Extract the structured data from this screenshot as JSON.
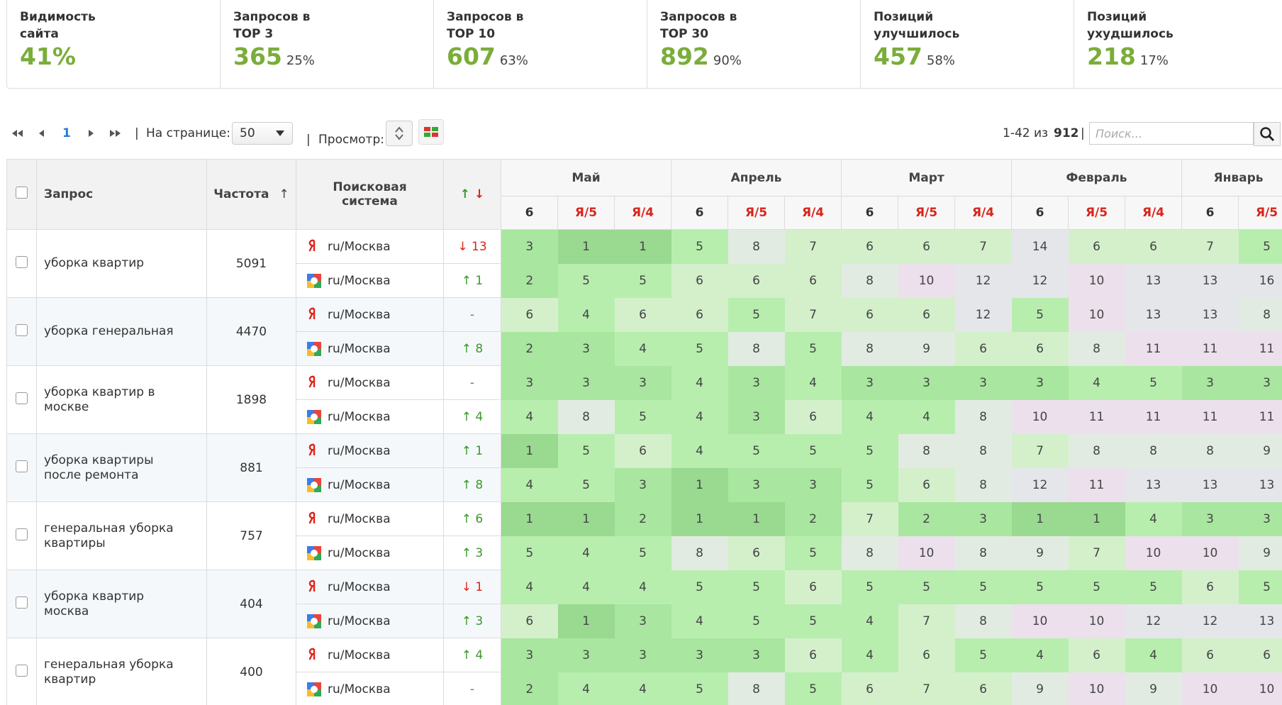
{
  "stats": [
    {
      "label": "Видимость сайта",
      "value": "41%"
    },
    {
      "label": "Запросов в TOP 3",
      "value": "365",
      "percent": "25%"
    },
    {
      "label": "Запросов в TOP 10",
      "value": "607",
      "percent": "63%"
    },
    {
      "label": "Запросов в TOP 30",
      "value": "892",
      "percent": "90%"
    },
    {
      "label": "Позиций улучшилось",
      "value": "457",
      "percent": "58%"
    },
    {
      "label": "Позиций ухудшилось",
      "value": "218",
      "percent": "17%"
    }
  ],
  "toolbar": {
    "page": "1",
    "separator": "|",
    "per_page_label": "На странице:",
    "per_page": "50",
    "view_label": "Просмотр:",
    "range": "1-42 из",
    "total": "912",
    "search_placeholder": "Поиск..."
  },
  "table": {
    "columns": {
      "query": "Запрос",
      "frequency": "Частота",
      "sort_arrow": "↑",
      "engine": "Поисковая система",
      "change_up": "↑",
      "change_down": "↓"
    },
    "months": [
      {
        "name": "Май",
        "subcolumns": [
          {
            "label": "6",
            "color": "#333333"
          },
          {
            "label": "Я/5",
            "color": "#d9251d"
          },
          {
            "label": "Я/4",
            "color": "#d9251d"
          }
        ]
      },
      {
        "name": "Апрель",
        "subcolumns": [
          {
            "label": "6",
            "color": "#333333"
          },
          {
            "label": "Я/5",
            "color": "#d9251d"
          },
          {
            "label": "Я/4",
            "color": "#d9251d"
          }
        ]
      },
      {
        "name": "Март",
        "subcolumns": [
          {
            "label": "6",
            "color": "#333333"
          },
          {
            "label": "Я/5",
            "color": "#d9251d"
          },
          {
            "label": "Я/4",
            "color": "#d9251d"
          }
        ]
      },
      {
        "name": "Февраль",
        "subcolumns": [
          {
            "label": "6",
            "color": "#333333"
          },
          {
            "label": "Я/5",
            "color": "#d9251d"
          },
          {
            "label": "Я/4",
            "color": "#d9251d"
          }
        ]
      },
      {
        "name": "Январь",
        "subcolumns": [
          {
            "label": "6",
            "color": "#333333"
          },
          {
            "label": "Я/5",
            "color": "#d9251d"
          }
        ]
      }
    ],
    "rows": [
      {
        "query": "уборка квартир",
        "frequency": "5091",
        "engines": [
          {
            "region": "ru/Москва",
            "change": "↓ 13",
            "positions": [
              3,
              1,
              1,
              5,
              8,
              7,
              6,
              6,
              7,
              14,
              6,
              6,
              7,
              5
            ]
          },
          {
            "region": "ru/Москва",
            "change": "↑ 1",
            "positions": [
              2,
              5,
              5,
              6,
              6,
              6,
              8,
              10,
              12,
              12,
              10,
              13,
              13,
              16
            ]
          }
        ]
      },
      {
        "query": "уборка генеральная",
        "frequency": "4470",
        "engines": [
          {
            "region": "ru/Москва",
            "change": "-",
            "positions": [
              6,
              4,
              6,
              6,
              5,
              7,
              6,
              6,
              12,
              5,
              10,
              13,
              13,
              8
            ]
          },
          {
            "region": "ru/Москва",
            "change": "↑ 8",
            "positions": [
              2,
              3,
              4,
              5,
              8,
              5,
              8,
              9,
              6,
              6,
              8,
              11,
              11,
              11
            ]
          }
        ]
      },
      {
        "query": "уборка квартир в москве",
        "frequency": "1898",
        "engines": [
          {
            "region": "ru/Москва",
            "change": "-",
            "positions": [
              3,
              3,
              3,
              4,
              3,
              4,
              3,
              3,
              3,
              3,
              4,
              5,
              3,
              3
            ]
          },
          {
            "region": "ru/Москва",
            "change": "↑ 4",
            "positions": [
              4,
              8,
              5,
              4,
              3,
              6,
              4,
              4,
              8,
              10,
              11,
              11,
              11,
              11
            ]
          }
        ]
      },
      {
        "query": "уборка квартиры после ремонта",
        "frequency": "881",
        "engines": [
          {
            "region": "ru/Москва",
            "change": "↑ 1",
            "positions": [
              1,
              5,
              6,
              4,
              5,
              5,
              5,
              8,
              8,
              7,
              8,
              8,
              8,
              9
            ]
          },
          {
            "region": "ru/Москва",
            "change": "↑ 8",
            "positions": [
              4,
              5,
              3,
              1,
              3,
              3,
              5,
              6,
              8,
              12,
              11,
              13,
              13,
              13
            ]
          }
        ]
      },
      {
        "query": "генеральная уборка квартиры",
        "frequency": "757",
        "engines": [
          {
            "region": "ru/Москва",
            "change": "↑ 6",
            "positions": [
              1,
              1,
              2,
              1,
              1,
              2,
              7,
              2,
              3,
              1,
              1,
              4,
              3,
              3
            ]
          },
          {
            "region": "ru/Москва",
            "change": "↑ 3",
            "positions": [
              5,
              4,
              5,
              8,
              6,
              5,
              8,
              10,
              8,
              9,
              7,
              10,
              10,
              9
            ]
          }
        ]
      },
      {
        "query": "уборка квартир москва",
        "frequency": "404",
        "engines": [
          {
            "region": "ru/Москва",
            "change": "↓ 1",
            "positions": [
              4,
              4,
              4,
              5,
              5,
              6,
              5,
              5,
              5,
              5,
              5,
              5,
              6,
              5
            ]
          },
          {
            "region": "ru/Москва",
            "change": "↑ 3",
            "positions": [
              6,
              1,
              3,
              4,
              5,
              5,
              4,
              7,
              8,
              10,
              10,
              12,
              12,
              13
            ]
          }
        ]
      },
      {
        "query": "генеральная уборка квартир",
        "frequency": "400",
        "engines": [
          {
            "region": "ru/Москва",
            "change": "↑ 4",
            "positions": [
              3,
              3,
              3,
              3,
              3,
              6,
              4,
              6,
              5,
              4,
              6,
              4,
              6,
              6
            ]
          },
          {
            "region": "ru/Москва",
            "change": "-",
            "positions": [
              2,
              4,
              4,
              5,
              8,
              5,
              6,
              7,
              6,
              9,
              10,
              9,
              10,
              10
            ]
          }
        ]
      }
    ]
  }
}
